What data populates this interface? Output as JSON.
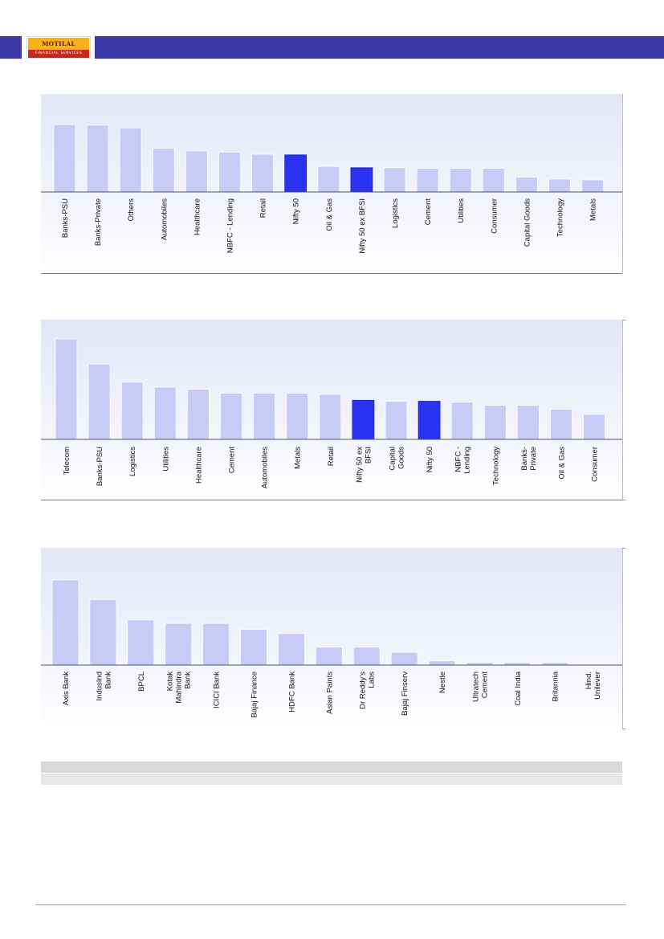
{
  "header": {
    "logo_top": "MOTILAL OSWAL",
    "logo_bottom": "FINANCIAL SERVICES"
  },
  "colors": {
    "header_bar": "#3d3aa8",
    "bar_default": "#c8cbf6",
    "bar_highlight": "#2a33f2"
  },
  "chart_data": [
    {
      "type": "bar",
      "categories": [
        "Banks-PSU",
        "Banks-Private",
        "Others",
        "Automobiles",
        "Healthcare",
        "NBFC - Lending",
        "Retail",
        "Nifty 50",
        "Oil & Gas",
        "Nifty 50 ex BFSI",
        "Logistics",
        "Cement",
        "Utilities",
        "Consumer",
        "Capital Goods",
        "Technology",
        "Metals"
      ],
      "values": [
        100,
        99,
        95,
        65,
        61,
        59,
        56,
        55,
        38,
        36,
        36,
        35,
        35,
        35,
        22,
        19,
        18
      ],
      "highlight": [
        "Nifty 50",
        "Nifty 50 ex BFSI"
      ],
      "grid": false
    },
    {
      "type": "bar",
      "categories": [
        "Telecom",
        "Banks-PSU",
        "Logistics",
        "Utilities",
        "Healthcare",
        "Cement",
        "Automobiles",
        "Metals",
        "Retail",
        "Nifty 50 ex BFSI",
        "Capital Goods",
        "Nifty 50",
        "NBFC - Lending",
        "Technology",
        "Banks-Private",
        "Oil & Gas",
        "Consumer"
      ],
      "tick_labels": [
        [
          "Telecom"
        ],
        [
          "Banks-PSU"
        ],
        [
          "Logistics"
        ],
        [
          "Utilities"
        ],
        [
          "Healthcare"
        ],
        [
          "Cement"
        ],
        [
          "Automobiles"
        ],
        [
          "Metals"
        ],
        [
          "Retail"
        ],
        [
          "Nifty 50 ex",
          "BFSI"
        ],
        [
          "Capital",
          "Goods"
        ],
        [
          "Nifty 50"
        ],
        [
          "NBFC -",
          "Lending"
        ],
        [
          "Technology"
        ],
        [
          "Banks-",
          "Private"
        ],
        [
          "Oil & Gas"
        ],
        [
          "Consumer"
        ]
      ],
      "values": [
        100,
        75,
        57,
        52,
        50,
        46,
        46,
        46,
        45,
        39,
        38,
        38,
        37,
        34,
        34,
        30,
        25
      ],
      "highlight": [
        "Nifty 50 ex BFSI",
        "Nifty 50"
      ],
      "grid": false
    },
    {
      "type": "bar",
      "categories": [
        "Axis Bank",
        "IndusInd Bank",
        "BPCL",
        "Kotak Mahindra Bank",
        "ICICI Bank",
        "Bajaj Finance",
        "HDFC Bank",
        "Asian Paints",
        "Dr Reddy's Labs",
        "Bajaj Finserv",
        "Nestle",
        "Ultratech Cement",
        "Coal India",
        "Britannia",
        "Hind. Unilever"
      ],
      "tick_labels": [
        [
          "Axis Bank"
        ],
        [
          "IndusInd",
          "Bank"
        ],
        [
          "BPCL"
        ],
        [
          "Kotak",
          "Mahindra",
          "Bank"
        ],
        [
          "ICICI Bank"
        ],
        [
          "Bajaj Finance"
        ],
        [
          "HDFC Bank"
        ],
        [
          "Asian Paints"
        ],
        [
          "Dr Reddy’s",
          "Labs"
        ],
        [
          "Bajaj Finserv"
        ],
        [
          "Nestle"
        ],
        [
          "Ultratech",
          "Cement"
        ],
        [
          "Coal India"
        ],
        [
          "Britannia"
        ],
        [
          "Hind.",
          "Unilever"
        ]
      ],
      "values": [
        100,
        77,
        53,
        49,
        49,
        42,
        37,
        21,
        21,
        15,
        5,
        3,
        3,
        3,
        1
      ],
      "highlight": [],
      "grid": false
    }
  ]
}
